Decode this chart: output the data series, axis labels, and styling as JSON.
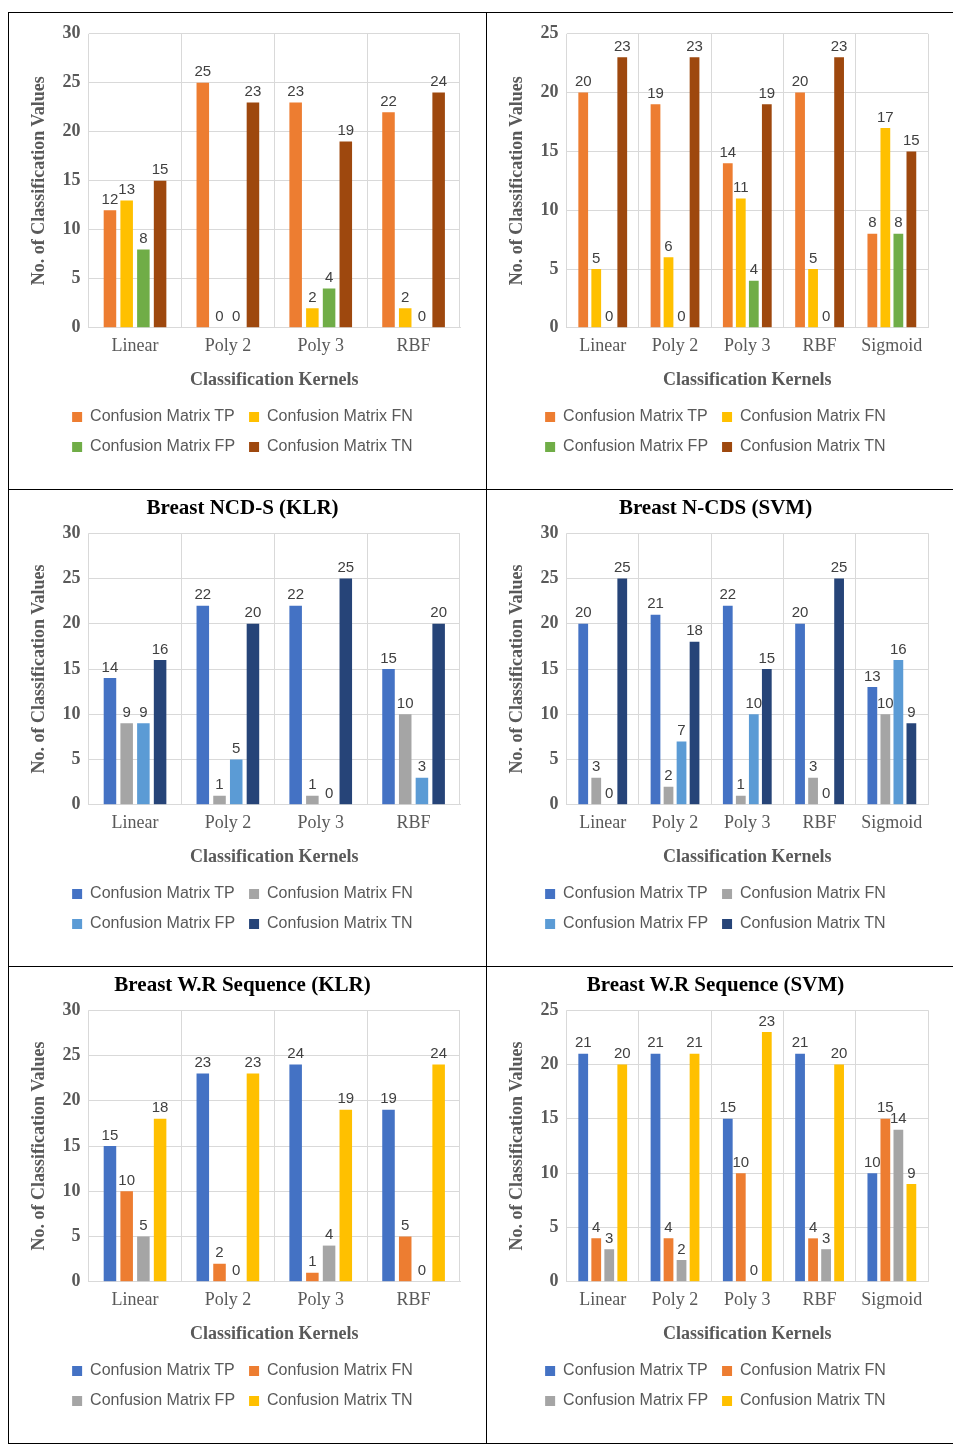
{
  "chart_data": [
    {
      "type": "bar",
      "xlabel": "Classification Kernels",
      "ylabel": "No. of Classification Values",
      "categories": [
        "Linear",
        "Poly 2",
        "Poly 3",
        "RBF"
      ],
      "series": [
        {
          "name": "Confusion Matrix TP",
          "color": "#ed7d31",
          "values": [
            12,
            25,
            23,
            22
          ]
        },
        {
          "name": "Confusion Matrix FN",
          "color": "#ffc000",
          "values": [
            13,
            0,
            2,
            2
          ]
        },
        {
          "name": "Confusion Matrix FP",
          "color": "#70ad47",
          "values": [
            8,
            0,
            4,
            0
          ]
        },
        {
          "name": "Confusion Matrix TN",
          "color": "#9e480e",
          "values": [
            15,
            23,
            19,
            24
          ]
        }
      ],
      "ylim": [
        0,
        30
      ],
      "yticks": [
        0,
        5,
        10,
        15,
        20,
        25,
        30
      ],
      "grid": true,
      "legend": "bottom",
      "data_labels": true
    },
    {
      "type": "bar",
      "xlabel": "Classification Kernels",
      "ylabel": "No. of Classification Values",
      "categories": [
        "Linear",
        "Poly 2",
        "Poly 3",
        "RBF",
        "Sigmoid"
      ],
      "series": [
        {
          "name": "Confusion Matrix TP",
          "color": "#ed7d31",
          "values": [
            20,
            19,
            14,
            20,
            8
          ]
        },
        {
          "name": "Confusion Matrix FN",
          "color": "#ffc000",
          "values": [
            5,
            6,
            11,
            5,
            17
          ]
        },
        {
          "name": "Confusion Matrix FP",
          "color": "#70ad47",
          "values": [
            0,
            0,
            4,
            0,
            8
          ]
        },
        {
          "name": "Confusion Matrix TN",
          "color": "#9e480e",
          "values": [
            23,
            23,
            19,
            23,
            15
          ]
        }
      ],
      "ylim": [
        0,
        25
      ],
      "yticks": [
        0,
        5,
        10,
        15,
        20,
        25
      ],
      "grid": true,
      "legend": "bottom",
      "data_labels": true
    },
    {
      "type": "bar",
      "title": "Breast NCD-S (KLR)",
      "xlabel": "Classification Kernels",
      "ylabel": "No. of Classification Values",
      "categories": [
        "Linear",
        "Poly 2",
        "Poly 3",
        "RBF"
      ],
      "series": [
        {
          "name": "Confusion Matrix TP",
          "color": "#4472c4",
          "values": [
            14,
            22,
            22,
            15
          ]
        },
        {
          "name": "Confusion Matrix FN",
          "color": "#a5a5a5",
          "values": [
            9,
            1,
            1,
            10
          ]
        },
        {
          "name": "Confusion Matrix FP",
          "color": "#5b9bd5",
          "values": [
            9,
            5,
            0,
            3
          ]
        },
        {
          "name": "Confusion Matrix TN",
          "color": "#264478",
          "values": [
            16,
            20,
            25,
            20
          ]
        }
      ],
      "ylim": [
        0,
        30
      ],
      "yticks": [
        0,
        5,
        10,
        15,
        20,
        25,
        30
      ],
      "grid": true,
      "legend": "bottom",
      "data_labels": true
    },
    {
      "type": "bar",
      "title": "Breast N-CDS (SVM)",
      "xlabel": "Classification Kernels",
      "ylabel": "No. of Classification Values",
      "categories": [
        "Linear",
        "Poly 2",
        "Poly 3",
        "RBF",
        "Sigmoid"
      ],
      "series": [
        {
          "name": "Confusion Matrix TP",
          "color": "#4472c4",
          "values": [
            20,
            21,
            22,
            20,
            13
          ]
        },
        {
          "name": "Confusion Matrix FN",
          "color": "#a5a5a5",
          "values": [
            3,
            2,
            1,
            3,
            10
          ]
        },
        {
          "name": "Confusion Matrix FP",
          "color": "#5b9bd5",
          "values": [
            0,
            7,
            10,
            0,
            16
          ]
        },
        {
          "name": "Confusion Matrix TN",
          "color": "#264478",
          "values": [
            25,
            18,
            15,
            25,
            9
          ]
        }
      ],
      "ylim": [
        0,
        30
      ],
      "yticks": [
        0,
        5,
        10,
        15,
        20,
        25,
        30
      ],
      "grid": true,
      "legend": "bottom",
      "data_labels": true
    },
    {
      "type": "bar",
      "title": "Breast W.R Sequence (KLR)",
      "xlabel": "Classification Kernels",
      "ylabel": "No. of Classification Values",
      "categories": [
        "Linear",
        "Poly 2",
        "Poly 3",
        "RBF"
      ],
      "series": [
        {
          "name": "Confusion Matrix TP",
          "color": "#4472c4",
          "values": [
            15,
            23,
            24,
            19
          ]
        },
        {
          "name": "Confusion Matrix FN",
          "color": "#ed7d31",
          "values": [
            10,
            2,
            1,
            5
          ]
        },
        {
          "name": "Confusion Matrix FP",
          "color": "#a5a5a5",
          "values": [
            5,
            0,
            4,
            0
          ]
        },
        {
          "name": "Confusion Matrix TN",
          "color": "#ffc000",
          "values": [
            18,
            23,
            19,
            24
          ]
        }
      ],
      "ylim": [
        0,
        30
      ],
      "yticks": [
        0,
        5,
        10,
        15,
        20,
        25,
        30
      ],
      "grid": true,
      "legend": "bottom",
      "data_labels": true
    },
    {
      "type": "bar",
      "title": "Breast W.R Sequence (SVM)",
      "xlabel": "Classification Kernels",
      "ylabel": "No. of Classification Values",
      "categories": [
        "Linear",
        "Poly 2",
        "Poly 3",
        "RBF",
        "Sigmoid"
      ],
      "series": [
        {
          "name": "Confusion Matrix TP",
          "color": "#4472c4",
          "values": [
            21,
            21,
            15,
            21,
            10
          ]
        },
        {
          "name": "Confusion Matrix FN",
          "color": "#ed7d31",
          "values": [
            4,
            4,
            10,
            4,
            15
          ]
        },
        {
          "name": "Confusion Matrix FP",
          "color": "#a5a5a5",
          "values": [
            3,
            2,
            0,
            3,
            14
          ]
        },
        {
          "name": "Confusion Matrix TN",
          "color": "#ffc000",
          "values": [
            20,
            21,
            23,
            20,
            9
          ]
        }
      ],
      "ylim": [
        0,
        25
      ],
      "yticks": [
        0,
        5,
        10,
        15,
        20,
        25
      ],
      "grid": true,
      "legend": "bottom",
      "data_labels": true
    }
  ]
}
